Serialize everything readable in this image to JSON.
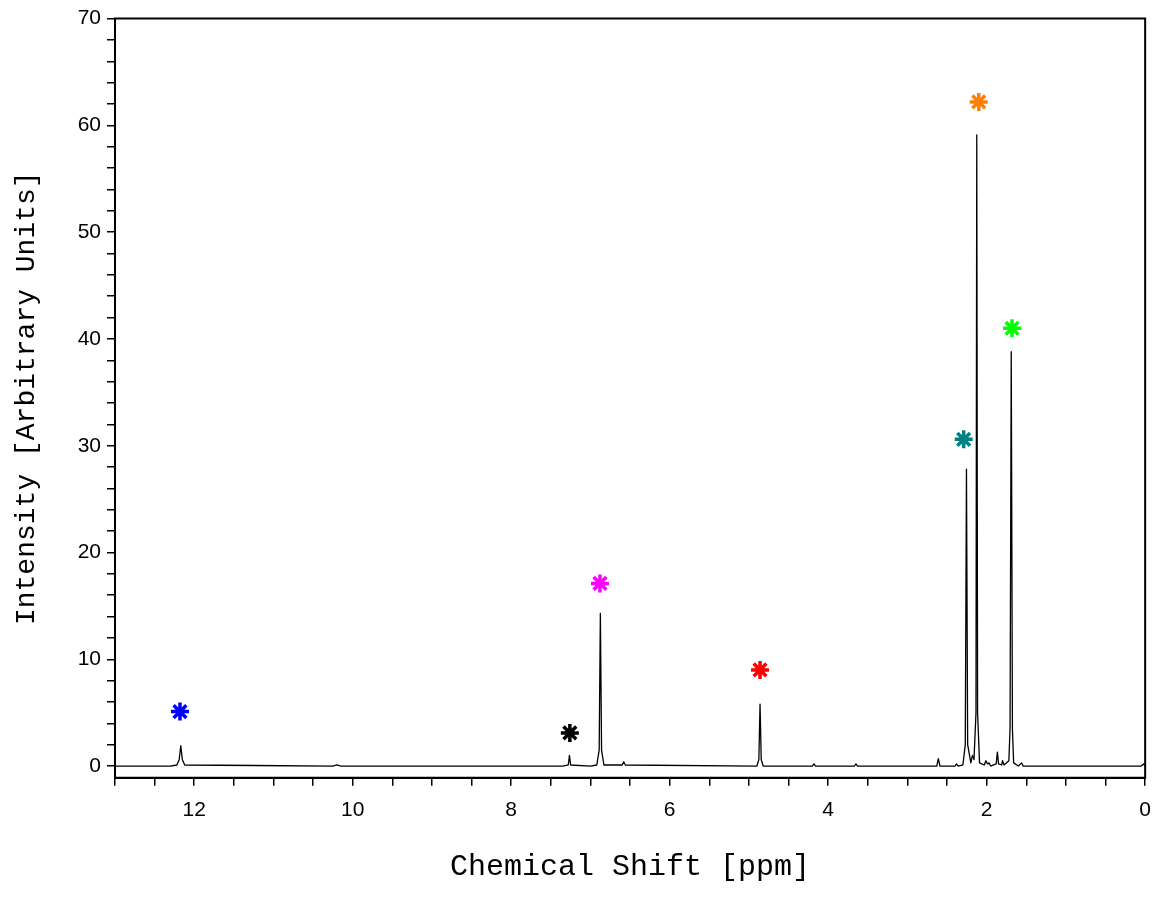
{
  "chart_data": {
    "type": "line",
    "xlabel": "Chemical Shift [ppm]",
    "ylabel": "Intensity [Arbitrary Units]",
    "xlim": [
      13,
      0
    ],
    "ylim": [
      -1.1,
      70
    ],
    "xticks": [
      {
        "value": 13,
        "label": null
      },
      {
        "value": 12.5,
        "label": null
      },
      12,
      {
        "value": 11.5,
        "label": null
      },
      {
        "value": 11,
        "label": null
      },
      {
        "value": 10.5,
        "label": null
      },
      10,
      {
        "value": 9.5,
        "label": null
      },
      {
        "value": 9,
        "label": null
      },
      {
        "value": 8.5,
        "label": null
      },
      8,
      {
        "value": 7.5,
        "label": null
      },
      {
        "value": 7,
        "label": null
      },
      {
        "value": 6.5,
        "label": null
      },
      6,
      {
        "value": 5.5,
        "label": null
      },
      {
        "value": 5,
        "label": null
      },
      {
        "value": 4.5,
        "label": null
      },
      4,
      {
        "value": 3.5,
        "label": null
      },
      {
        "value": 3,
        "label": null
      },
      {
        "value": 2.5,
        "label": null
      },
      2,
      {
        "value": 1.5,
        "label": null
      },
      {
        "value": 1,
        "label": null
      },
      {
        "value": 0.5,
        "label": null
      },
      0
    ],
    "yticks": [
      0,
      {
        "value": 2,
        "label": null
      },
      {
        "value": 4,
        "label": null
      },
      {
        "value": 6,
        "label": null
      },
      {
        "value": 8,
        "label": null
      },
      10,
      {
        "value": 12,
        "label": null
      },
      {
        "value": 14,
        "label": null
      },
      {
        "value": 16,
        "label": null
      },
      {
        "value": 18,
        "label": null
      },
      20,
      {
        "value": 22,
        "label": null
      },
      {
        "value": 24,
        "label": null
      },
      {
        "value": 26,
        "label": null
      },
      {
        "value": 28,
        "label": null
      },
      30,
      {
        "value": 32,
        "label": null
      },
      {
        "value": 34,
        "label": null
      },
      {
        "value": 36,
        "label": null
      },
      {
        "value": 38,
        "label": null
      },
      40,
      {
        "value": 42,
        "label": null
      },
      {
        "value": 44,
        "label": null
      },
      {
        "value": 46,
        "label": null
      },
      {
        "value": 48,
        "label": null
      },
      50,
      {
        "value": 52,
        "label": null
      },
      {
        "value": 54,
        "label": null
      },
      {
        "value": 56,
        "label": null
      },
      {
        "value": 58,
        "label": null
      },
      60,
      {
        "value": 62,
        "label": null
      },
      {
        "value": 64,
        "label": null
      },
      {
        "value": 66,
        "label": null
      },
      {
        "value": 68,
        "label": null
      },
      70
    ],
    "grid": false,
    "legend": false,
    "series": [
      {
        "color": "#000000",
        "marker": "none",
        "x": [
          13,
          12.3,
          12.22,
          12.19,
          12.17,
          12.15,
          12.12,
          10.25,
          10.2,
          10.15,
          7.35,
          7.28,
          7.265,
          7.25,
          7.0,
          6.92,
          6.89,
          6.875,
          6.86,
          6.83,
          6.6,
          6.58,
          6.56,
          4.9,
          4.875,
          4.86,
          4.845,
          4.82,
          4.2,
          4.18,
          4.16,
          3.67,
          3.65,
          3.63,
          2.63,
          2.61,
          2.59,
          2.4,
          2.38,
          2.36,
          2.3,
          2.27,
          2.255,
          2.24,
          2.2,
          2.18,
          2.16,
          2.135,
          2.125,
          2.115,
          2.09,
          2.03,
          2.01,
          1.99,
          1.97,
          1.95,
          1.88,
          1.865,
          1.85,
          1.81,
          1.8,
          1.78,
          1.72,
          1.705,
          1.69,
          1.675,
          1.66,
          1.6,
          1.56,
          1.54,
          0.05,
          0.02,
          0
        ],
        "values": [
          0,
          0,
          0.1,
          0.6,
          1.9,
          0.6,
          0.1,
          0,
          0.1,
          0,
          0,
          0.1,
          1.0,
          0.1,
          0,
          0.1,
          1.5,
          14.3,
          1.5,
          0.1,
          0.1,
          0.4,
          0.1,
          0,
          0.6,
          5.8,
          0.6,
          0,
          0,
          0.2,
          0,
          0,
          0.2,
          0,
          0,
          0.7,
          0,
          0,
          0.2,
          0,
          0.1,
          2.0,
          27.8,
          2.0,
          0.3,
          1.0,
          0.6,
          5,
          59.1,
          5,
          0.3,
          0.1,
          0.5,
          0.2,
          0.3,
          0,
          0.2,
          1.3,
          0.2,
          0.1,
          0.5,
          0.1,
          0.5,
          3.5,
          38.8,
          3.5,
          0.3,
          0,
          0.3,
          0,
          0,
          0.2,
          0
        ]
      },
      {
        "type": "scatter",
        "marker": "cross",
        "x": [
          12.18,
          7.26,
          6.88,
          4.86,
          2.29,
          2.1,
          1.68
        ],
        "values": [
          5.1,
          3.1,
          17.1,
          9.0,
          30.6,
          62.2,
          41.0
        ],
        "colors": [
          "#0000ff",
          "#000000",
          "#ff00ff",
          "#ff0000",
          "#008080",
          "#ff8000",
          "#00ff00"
        ]
      }
    ]
  }
}
